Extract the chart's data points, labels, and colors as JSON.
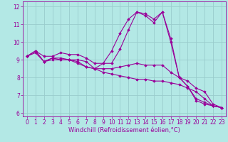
{
  "title": "",
  "xlabel": "Windchill (Refroidissement éolien,°C)",
  "ylabel": "",
  "xlim": [
    -0.5,
    23.5
  ],
  "ylim": [
    5.8,
    12.3
  ],
  "yticks": [
    6,
    7,
    8,
    9,
    10,
    11,
    12
  ],
  "xticks": [
    0,
    1,
    2,
    3,
    4,
    5,
    6,
    7,
    8,
    9,
    10,
    11,
    12,
    13,
    14,
    15,
    16,
    17,
    18,
    19,
    20,
    21,
    22,
    23
  ],
  "background_color": "#b3e8e5",
  "grid_color": "#99cccc",
  "line_color": "#990099",
  "series": [
    [
      9.2,
      9.5,
      9.2,
      9.2,
      9.4,
      9.3,
      9.3,
      9.1,
      8.8,
      8.8,
      9.5,
      10.5,
      11.3,
      11.7,
      11.6,
      11.3,
      11.7,
      10.0,
      8.0,
      7.5,
      6.7,
      6.5,
      6.4,
      6.3
    ],
    [
      9.2,
      9.5,
      8.9,
      9.1,
      9.1,
      9.0,
      9.0,
      8.9,
      8.5,
      8.8,
      8.8,
      9.6,
      10.7,
      11.7,
      11.5,
      11.1,
      11.7,
      10.2,
      8.0,
      7.5,
      6.8,
      6.6,
      6.4,
      6.3
    ],
    [
      9.2,
      9.5,
      8.9,
      9.1,
      9.0,
      9.0,
      8.9,
      8.6,
      8.5,
      8.5,
      8.5,
      8.6,
      8.7,
      8.8,
      8.7,
      8.7,
      8.7,
      8.3,
      8.0,
      7.8,
      7.4,
      7.2,
      6.5,
      6.3
    ],
    [
      9.2,
      9.4,
      8.9,
      9.0,
      9.0,
      9.0,
      8.8,
      8.6,
      8.5,
      8.3,
      8.2,
      8.1,
      8.0,
      7.9,
      7.9,
      7.8,
      7.8,
      7.7,
      7.6,
      7.4,
      7.2,
      6.8,
      6.4,
      6.3
    ]
  ],
  "marker": "D",
  "markersize": 1.8,
  "linewidth": 0.8,
  "tick_fontsize": 5.5,
  "xlabel_fontsize": 6.0
}
